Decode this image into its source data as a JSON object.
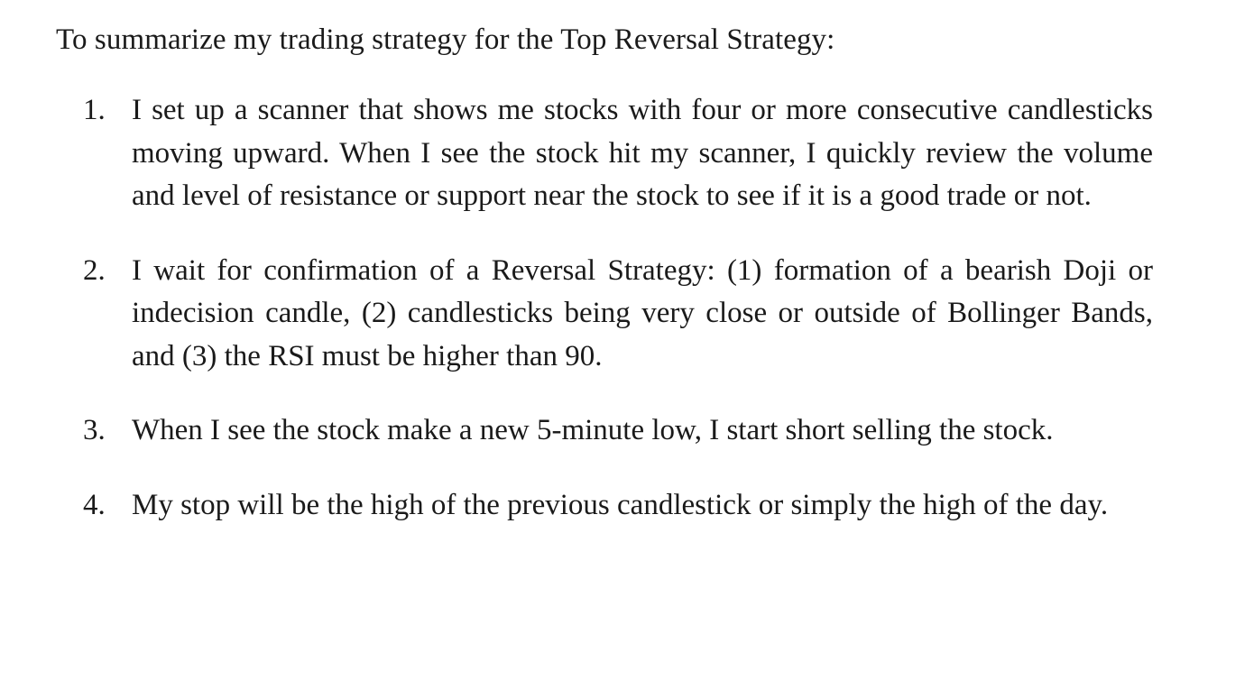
{
  "intro": "To summarize my trading strategy for the Top Reversal Strategy:",
  "steps": [
    {
      "number": "1.",
      "text": "I set up a scanner that shows me stocks with four or more consecutive candlesticks moving upward. When I see the stock hit my scanner, I quickly review the volume and level of resistance or support near the stock to see if it is a good trade or not."
    },
    {
      "number": "2.",
      "text": "I wait for confirmation of a Reversal Strategy: (1) formation of a bearish Doji or indecision candle, (2) candlesticks being very close or outside of Bollinger Bands, and (3) the RSI must be higher than 90."
    },
    {
      "number": "3.",
      "text": "When I see the stock make a new 5-minute low, I start short selling the stock."
    },
    {
      "number": "4.",
      "text": "My stop will be the high of the previous candlestick or simply the high of the day."
    }
  ]
}
